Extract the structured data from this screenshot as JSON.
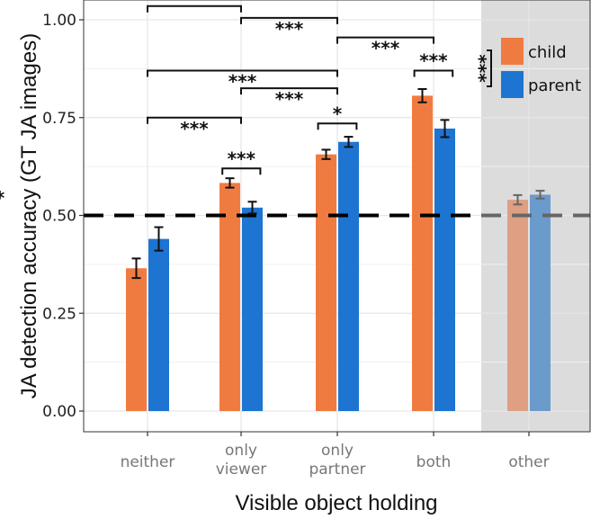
{
  "chart_data": {
    "type": "bar",
    "xlabel": "Visible object holding",
    "ylabel": "JA detection accuracy (GT JA images)",
    "ylim": [
      0,
      1.05
    ],
    "yticks": [
      "0.00",
      "0.25",
      "0.50",
      "0.75",
      "1.00"
    ],
    "categories": [
      {
        "label": [
          "neither"
        ],
        "shaded": false
      },
      {
        "label": [
          "only",
          "viewer"
        ],
        "shaded": false
      },
      {
        "label": [
          "only",
          "partner"
        ],
        "shaded": false
      },
      {
        "label": [
          "both"
        ],
        "shaded": false
      },
      {
        "label": [
          "other"
        ],
        "shaded": true
      }
    ],
    "series": [
      {
        "name": "child",
        "color": "#F07B41",
        "faded_color": "#DE9F83",
        "values": [
          0.365,
          0.583,
          0.656,
          0.806,
          0.54
        ],
        "errors": [
          0.025,
          0.012,
          0.012,
          0.017,
          0.012
        ]
      },
      {
        "name": "parent",
        "color": "#1E74D1",
        "faded_color": "#6B9BCB",
        "values": [
          0.44,
          0.52,
          0.688,
          0.722,
          0.553
        ],
        "errors": [
          0.03,
          0.015,
          0.013,
          0.022,
          0.01
        ]
      }
    ],
    "reference_line": 0.5,
    "legend_position": "top-right",
    "legend_significance": "***",
    "brackets": [
      {
        "x1": 0,
        "x2": 1,
        "level": 1.035,
        "label": "***",
        "label_above": true
      },
      {
        "x1": 1,
        "x2": 2,
        "level": 1.005,
        "label": "***",
        "label_above": false
      },
      {
        "x1": 2,
        "x2": 3,
        "level": 0.955,
        "label": "***",
        "label_above": false
      },
      {
        "x1": 0,
        "x2": 2,
        "level": 0.87,
        "label": "***",
        "label_above": false
      },
      {
        "x1": 1,
        "x2": 2,
        "level": 0.825,
        "label": "***",
        "label_above": false
      },
      {
        "x1": 0,
        "x2": 1,
        "level": 0.75,
        "label": "***",
        "label_above": false
      },
      {
        "x1": 0.8,
        "x2": 1.2,
        "level": 0.62,
        "label": "***",
        "label_above": true
      },
      {
        "x1": 2.8,
        "x2": 3.2,
        "level": 0.87,
        "label": "***",
        "label_above": true
      },
      {
        "x1": 1.8,
        "x2": 2.2,
        "level": 0.735,
        "label": "*",
        "label_above": true
      },
      {
        "x1": -0.2,
        "x2": 0.2,
        "level": 0.52,
        "label": "*",
        "label_above": true
      }
    ]
  }
}
